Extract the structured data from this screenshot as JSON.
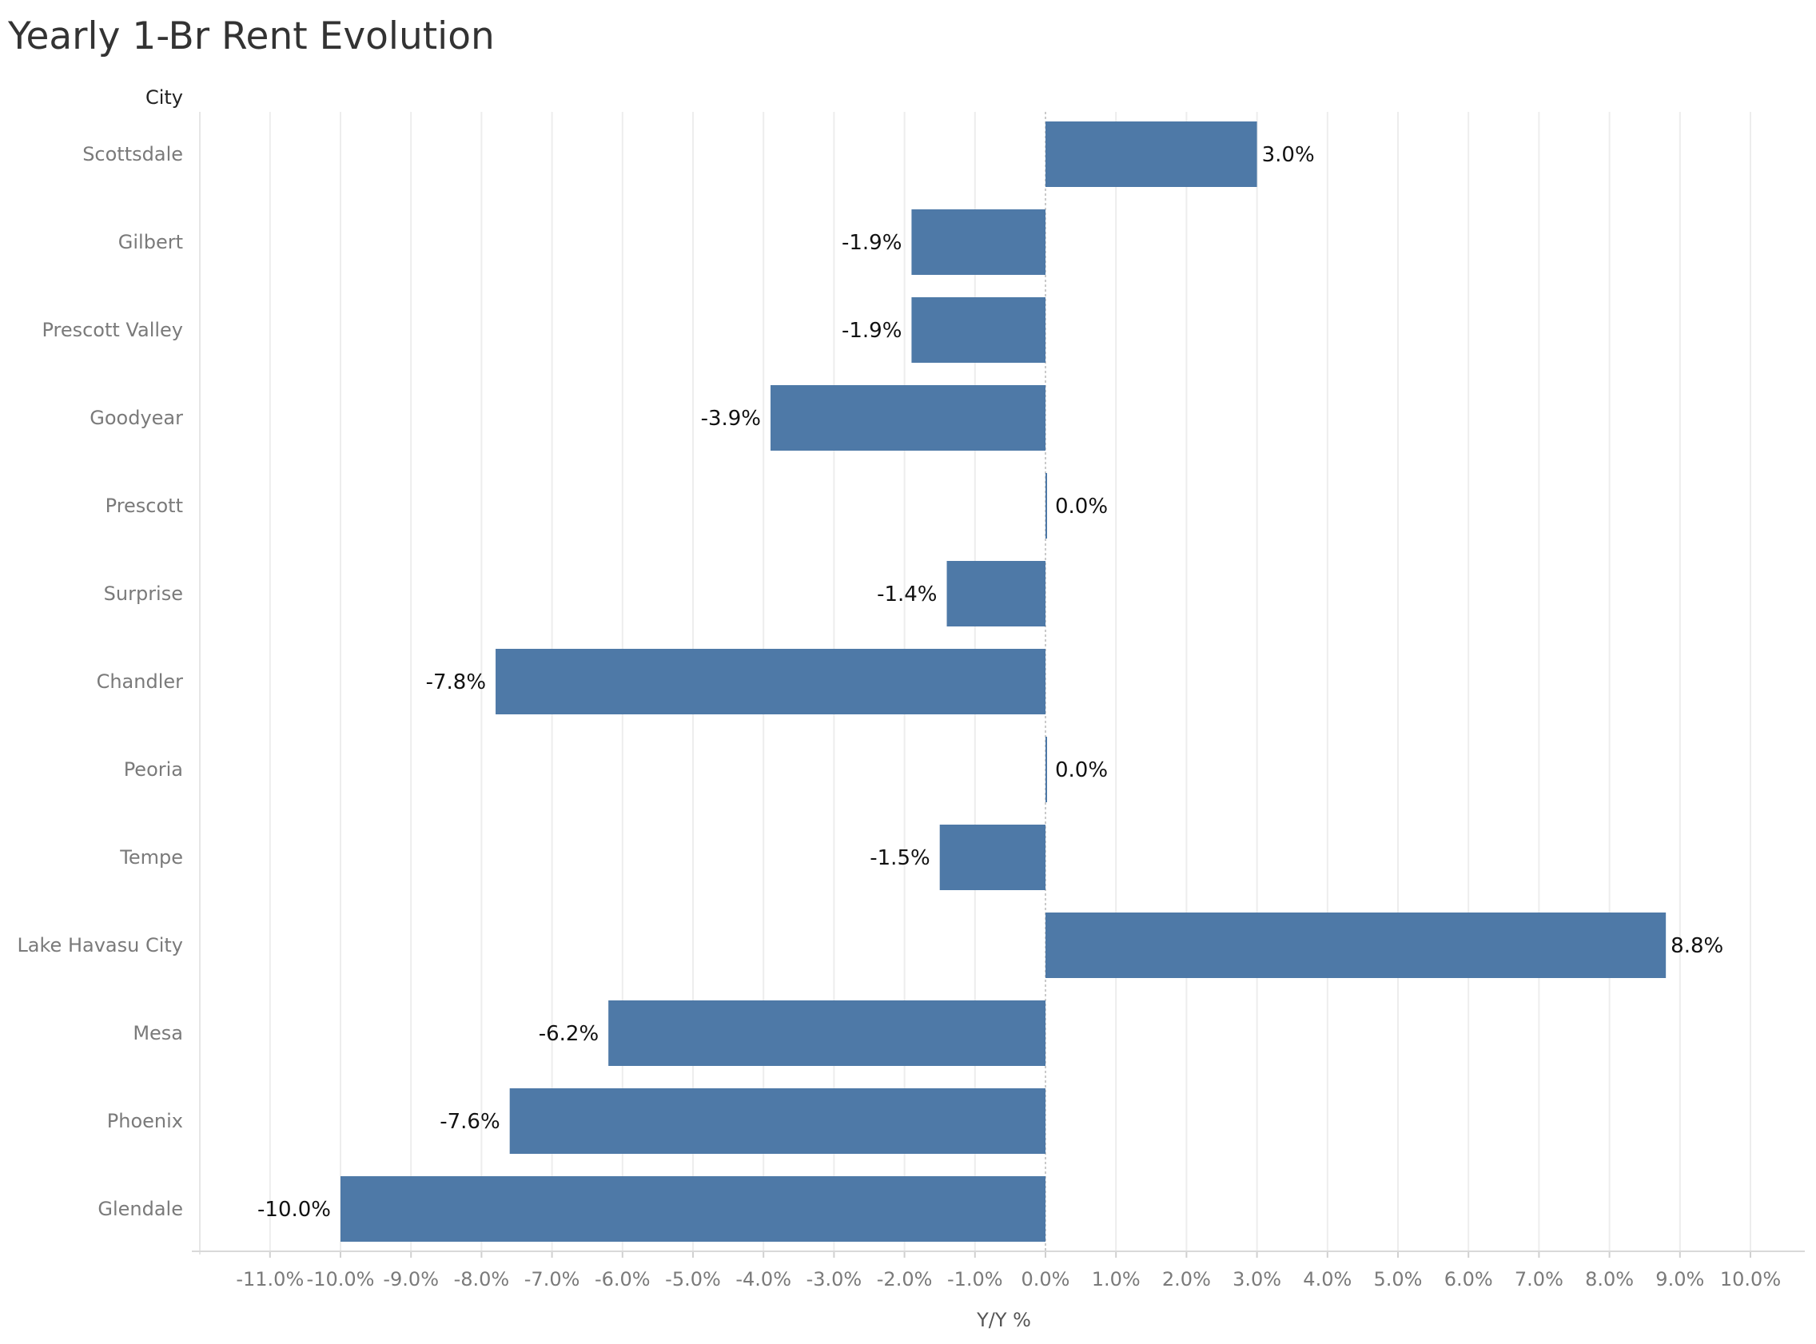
{
  "chart_data": {
    "type": "bar",
    "orientation": "horizontal",
    "title": "Yearly 1-Br Rent Evolution",
    "row_header": "City",
    "xlabel": "Y/Y %",
    "ylabel": "City",
    "xlim": [
      -12,
      11
    ],
    "grid": true,
    "bar_color": "#4e79a7",
    "x_ticks": [
      -11,
      -10,
      -9,
      -8,
      -7,
      -6,
      -5,
      -4,
      -3,
      -2,
      -1,
      0,
      1,
      2,
      3,
      4,
      5,
      6,
      7,
      8,
      9,
      10
    ],
    "x_tick_labels": [
      "-11.0%",
      "-10.0%",
      "-9.0%",
      "-8.0%",
      "-7.0%",
      "-6.0%",
      "-5.0%",
      "-4.0%",
      "-3.0%",
      "-2.0%",
      "-1.0%",
      "0.0%",
      "1.0%",
      "2.0%",
      "3.0%",
      "4.0%",
      "5.0%",
      "6.0%",
      "7.0%",
      "8.0%",
      "9.0%",
      "10.0%"
    ],
    "categories": [
      "Scottsdale",
      "Gilbert",
      "Prescott Valley",
      "Goodyear",
      "Prescott",
      "Surprise",
      "Chandler",
      "Peoria",
      "Tempe",
      "Lake Havasu City",
      "Mesa",
      "Phoenix",
      "Glendale"
    ],
    "values": [
      3.0,
      -1.9,
      -1.9,
      -3.9,
      0.0,
      -1.4,
      -7.8,
      0.0,
      -1.5,
      8.8,
      -6.2,
      -7.6,
      -10.0
    ],
    "value_labels": [
      "3.0%",
      "-1.9%",
      "-1.9%",
      "-3.9%",
      "0.0%",
      "-1.4%",
      "-7.8%",
      "0.0%",
      "-1.5%",
      "8.8%",
      "-6.2%",
      "-7.6%",
      "-10.0%"
    ]
  }
}
